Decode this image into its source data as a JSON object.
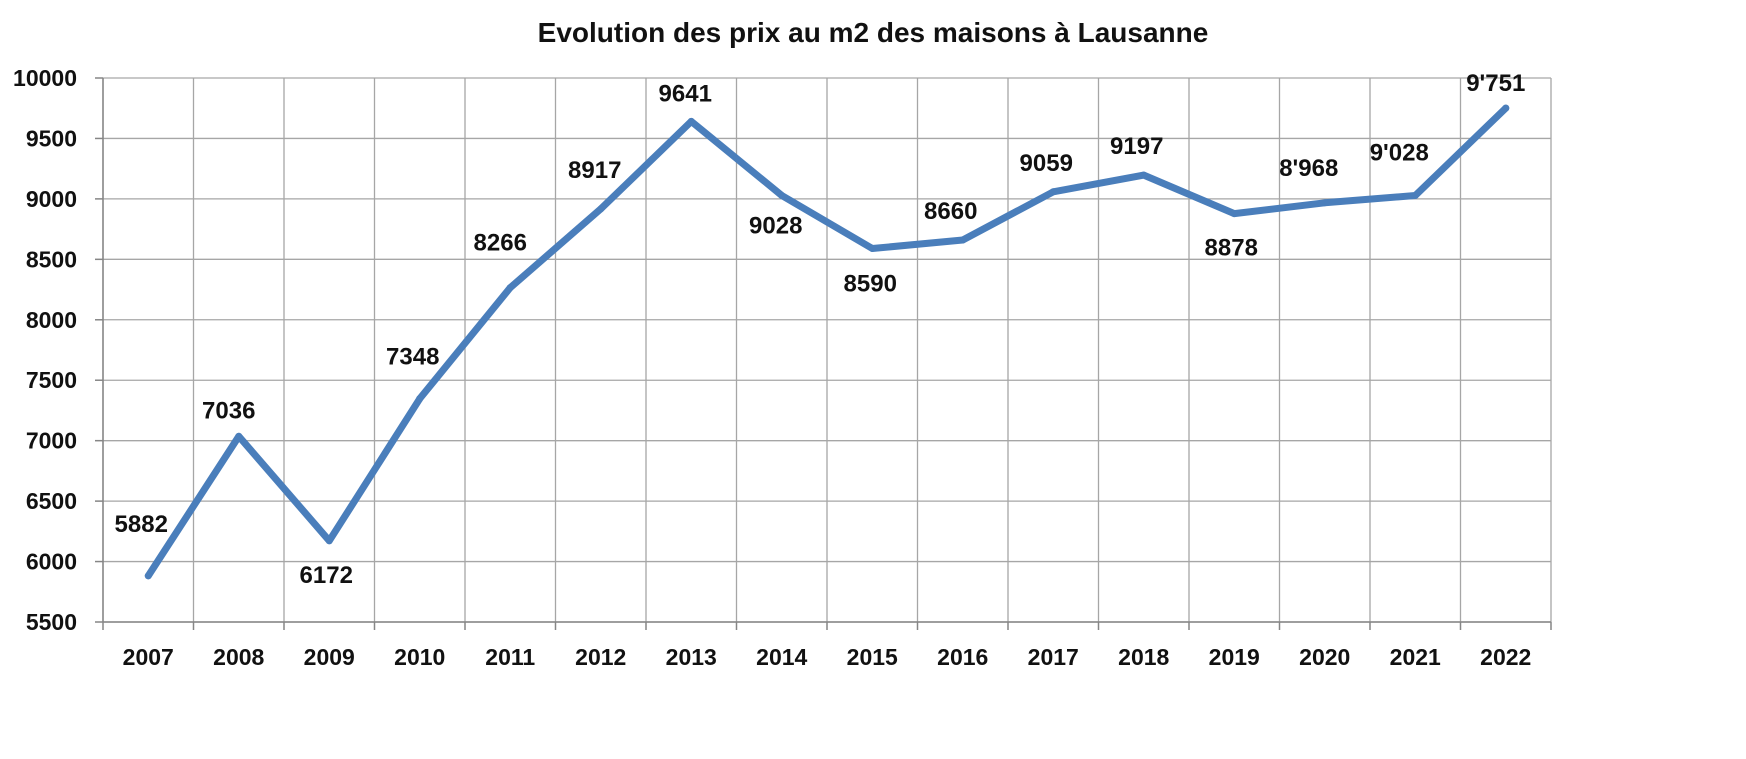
{
  "chart_data": {
    "type": "line",
    "title": "Evolution des prix au m2 des maisons à Lausanne",
    "xlabel": "",
    "ylabel": "",
    "categories": [
      "2007",
      "2008",
      "2009",
      "2010",
      "2011",
      "2012",
      "2013",
      "2014",
      "2015",
      "2016",
      "2017",
      "2018",
      "2019",
      "2020",
      "2021",
      "2022"
    ],
    "series": [
      {
        "values": [
          5882,
          7036,
          6172,
          7348,
          8266,
          8917,
          9641,
          9028,
          8590,
          8660,
          9059,
          9197,
          8878,
          8968,
          9028,
          9751
        ],
        "labels": [
          "5882",
          "7036",
          "6172",
          "7348",
          "8266",
          "8917",
          "9641",
          "9028",
          "8590",
          "8660",
          "9059",
          "9197",
          "8878",
          "8'968",
          "9'028",
          "9'751"
        ],
        "color": "#4a7ebb"
      }
    ],
    "ylim": [
      5500,
      10000
    ],
    "yticks": [
      "5500",
      "6000",
      "6500",
      "7000",
      "7500",
      "8000",
      "8500",
      "9000",
      "9500",
      "10000"
    ],
    "grid": true,
    "legend": "none",
    "colors": {
      "line": "#4a7ebb",
      "grid": "#a6a6a6",
      "axis": "#868686",
      "text": "#111111"
    }
  }
}
